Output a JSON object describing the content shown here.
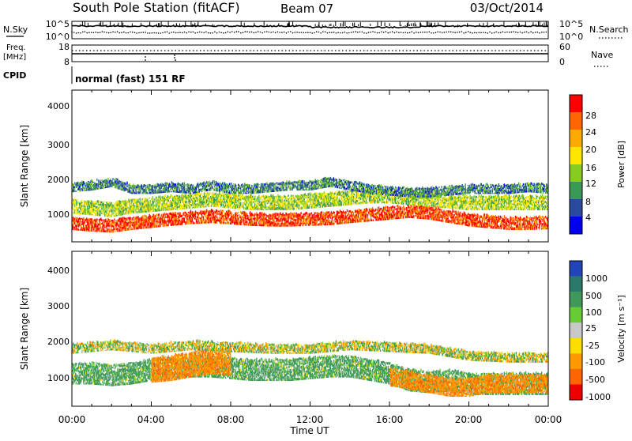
{
  "header": {
    "title": "South Pole Station (fitACF)",
    "beam": "Beam 07",
    "date": "03/Oct/2014"
  },
  "summary": {
    "nsky_label": "N.Sky",
    "nsky_ticks": [
      "10^5",
      "10^0"
    ],
    "nsearch_label": "N.Search",
    "nsearch_ticks": [
      "10^5",
      "10^0"
    ],
    "freq_label_1": "Freq.",
    "freq_label_2": "[MHz]",
    "freq_ticks": [
      "18",
      "8"
    ],
    "nave_label": "Nave",
    "nave_ticks": [
      "60",
      "0"
    ],
    "cpid_label": "CPID",
    "cpid_value": "normal (fast) 151 RF"
  },
  "axes": {
    "ylabel": "Slant Range [km]",
    "yticks": [
      "4000",
      "3000",
      "2000",
      "1000"
    ],
    "xticks": [
      "00:00",
      "04:00",
      "08:00",
      "12:00",
      "16:00",
      "20:00",
      "00:00"
    ],
    "xlabel": "Time UT"
  },
  "colorbars": {
    "power": {
      "label": "Power [dB]",
      "ticks": [
        "28",
        "24",
        "20",
        "16",
        "12",
        "8",
        "4"
      ],
      "colors": [
        "#ff0000",
        "#ff6600",
        "#ffaa00",
        "#ffe600",
        "#88cc22",
        "#3a9a55",
        "#2a4aa0",
        "#0000ee"
      ]
    },
    "velocity": {
      "label": "Velocity [m s⁻¹]",
      "ticks": [
        "1000",
        "500",
        "100",
        "25",
        "-25",
        "-100",
        "-500",
        "-1000"
      ],
      "colors": [
        "#2244bb",
        "#2a7a6a",
        "#3f9a5a",
        "#66cc33",
        "#c8c8c8",
        "#ffdd00",
        "#ff9900",
        "#ff6600",
        "#ee0000"
      ]
    }
  },
  "chart_data": [
    {
      "type": "heatmap",
      "title": "Power",
      "ylabel": "Slant Range [km]",
      "xlabel": "Time UT",
      "xlim": [
        0,
        24
      ],
      "ylim": [
        180,
        4600
      ],
      "colorbar_label": "Power [dB]",
      "color_range": [
        0,
        30
      ],
      "layers": [
        {
          "t": [
            0,
            1,
            2,
            3,
            4,
            5,
            6,
            7,
            8,
            9,
            10,
            11,
            12,
            13,
            14,
            15,
            16,
            17,
            18,
            19,
            20,
            21,
            22,
            23,
            24
          ],
          "range_km": [
            700,
            650,
            620,
            700,
            760,
            820,
            870,
            900,
            860,
            820,
            800,
            800,
            820,
            840,
            900,
            950,
            1000,
            1050,
            1000,
            900,
            800,
            750,
            700,
            700,
            720
          ],
          "width_km": 350,
          "value_db": 26
        },
        {
          "t": [
            0,
            1,
            2,
            3,
            4,
            5,
            6,
            7,
            8,
            9,
            10,
            11,
            12,
            13,
            14,
            15,
            16,
            17,
            18,
            19,
            20,
            21,
            22,
            23,
            24
          ],
          "range_km": [
            1200,
            1150,
            1100,
            1200,
            1250,
            1300,
            1350,
            1400,
            1350,
            1300,
            1300,
            1300,
            1350,
            1400,
            1450,
            1500,
            1500,
            1450,
            1400,
            1350,
            1300,
            1300,
            1300,
            1300,
            1300
          ],
          "width_km": 400,
          "value_db": 14
        },
        {
          "t": [
            0,
            1,
            2,
            3,
            4,
            5,
            6,
            7,
            8,
            9,
            10,
            11,
            12,
            13,
            14,
            15,
            16,
            17,
            18,
            19,
            20,
            21,
            22,
            23,
            24
          ],
          "range_km": [
            1750,
            1800,
            1900,
            1700,
            1700,
            1750,
            1700,
            1800,
            1700,
            1700,
            1750,
            1800,
            1800,
            1900,
            1800,
            1700,
            1650,
            1600,
            1600,
            1650,
            1700,
            1700,
            1700,
            1750,
            1700
          ],
          "width_km": 250,
          "value_db": 8
        }
      ]
    },
    {
      "type": "heatmap",
      "title": "Velocity",
      "ylabel": "Slant Range [km]",
      "xlabel": "Time UT",
      "xlim": [
        0,
        24
      ],
      "ylim": [
        180,
        4600
      ],
      "colorbar_label": "Velocity [m s⁻¹]",
      "color_range": [
        -1000,
        1000
      ],
      "layers": [
        {
          "t": [
            0,
            1,
            2,
            3,
            4,
            5,
            6,
            7,
            8,
            9,
            10,
            11,
            12,
            13,
            14,
            15,
            16,
            17,
            18,
            19,
            20,
            21,
            22,
            23,
            24
          ],
          "range_km": [
            1100,
            1100,
            1050,
            1100,
            1200,
            1250,
            1300,
            1300,
            1250,
            1200,
            1200,
            1200,
            1250,
            1300,
            1300,
            1200,
            1100,
            900,
            850,
            900,
            800,
            800,
            800,
            800,
            800
          ],
          "width_km": 600,
          "value_ms": 200
        },
        {
          "t": [
            4,
            5,
            6,
            7,
            8
          ],
          "range_km": [
            1200,
            1250,
            1350,
            1450,
            1400
          ],
          "width_km": 700,
          "value_ms": -400
        },
        {
          "t": [
            16,
            17,
            18,
            19,
            20,
            21,
            22,
            23,
            24
          ],
          "range_km": [
            1000,
            900,
            800,
            700,
            700,
            800,
            800,
            800,
            800
          ],
          "width_km": 500,
          "value_ms": -400
        },
        {
          "t": [
            0,
            2,
            4,
            6,
            8,
            10,
            12,
            14,
            16,
            18,
            20,
            22,
            24
          ],
          "range_km": [
            1800,
            1900,
            1800,
            1900,
            1850,
            1800,
            1800,
            1900,
            1850,
            1800,
            1600,
            1550,
            1550
          ],
          "width_km": 250,
          "value_ms": 0
        }
      ]
    }
  ]
}
